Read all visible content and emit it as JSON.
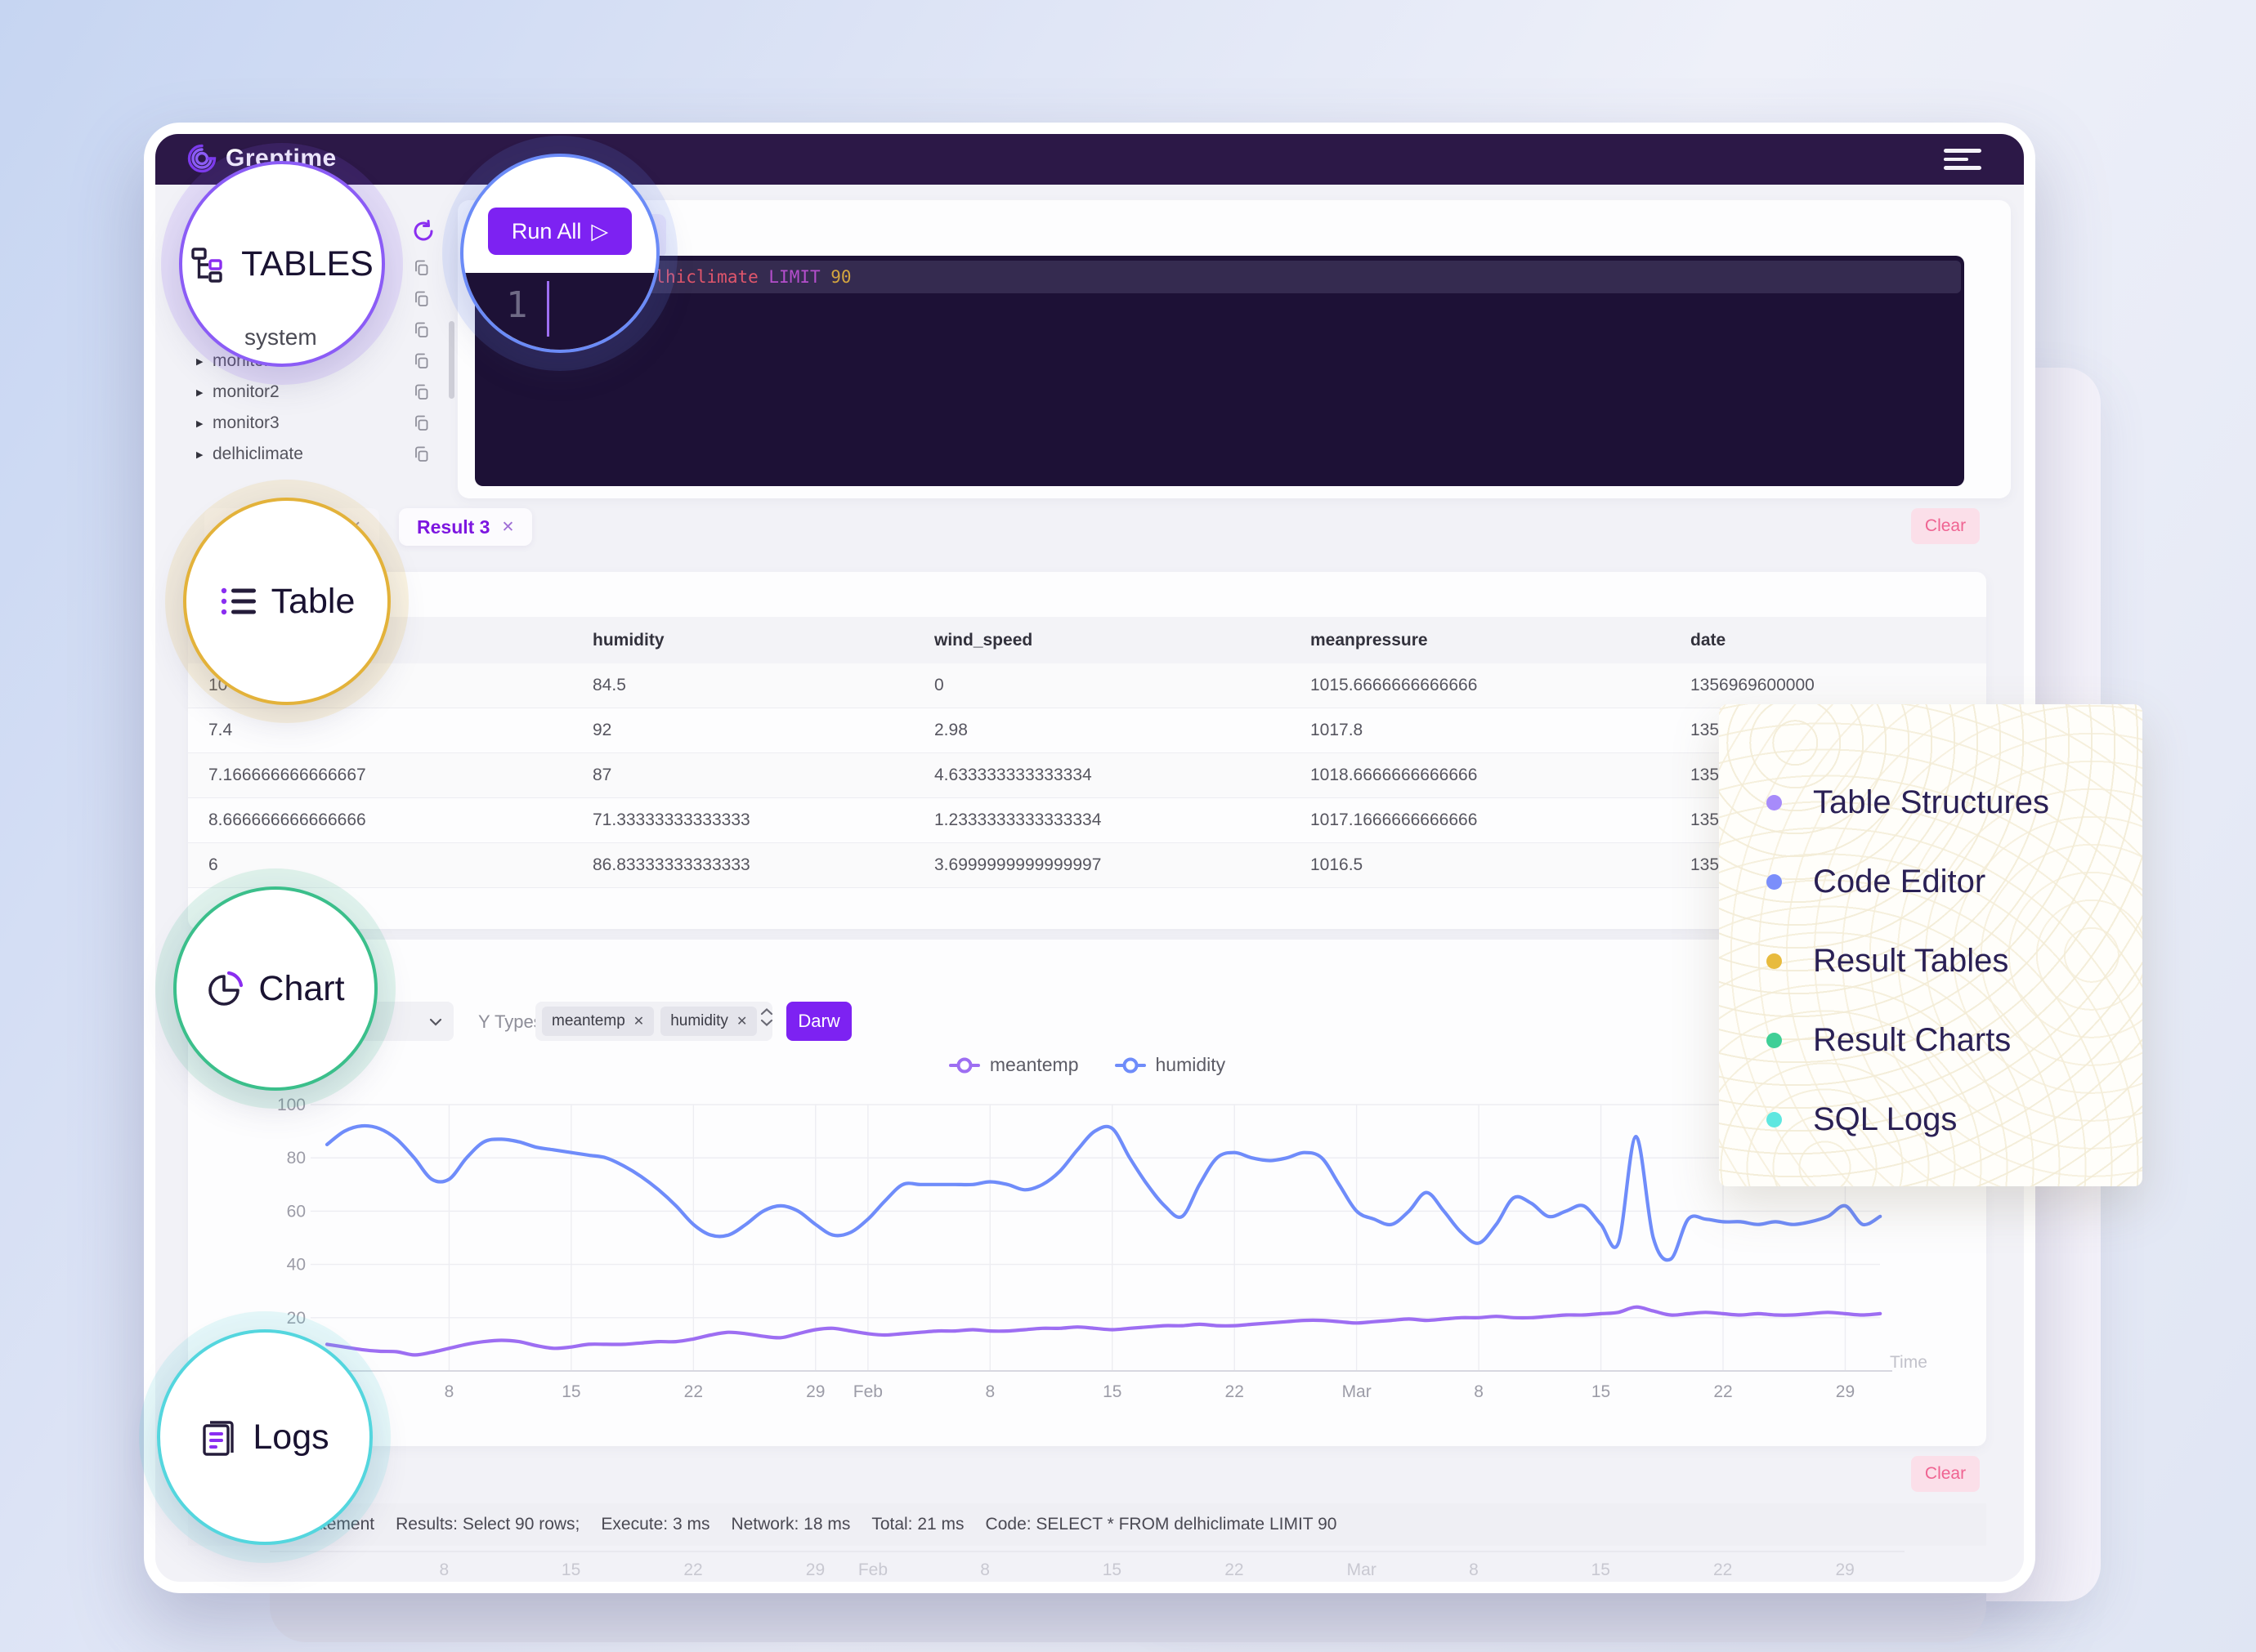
{
  "navbar": {
    "brand": "Greptime"
  },
  "callouts": {
    "tables": {
      "label": "TABLES",
      "sublabel": "system",
      "ring": "#8b5cf6"
    },
    "run_all": {
      "label": "Run All",
      "play_glyph": "▷",
      "gutter_line": "1",
      "ring": "#6b8bf7"
    },
    "table": {
      "label": "Table",
      "ring": "#e3b23a"
    },
    "chart": {
      "label": "Chart",
      "ring": "#3bbf8b"
    },
    "logs": {
      "label": "Logs",
      "ring": "#54d6de"
    }
  },
  "sidebar": {
    "rows": [
      {
        "label": "",
        "caret": false
      },
      {
        "label": "",
        "caret": false
      },
      {
        "label": "",
        "caret": false
      },
      {
        "label": "monitor1",
        "caret": true
      },
      {
        "label": "monitor2",
        "caret": true
      },
      {
        "label": "monitor3",
        "caret": true
      },
      {
        "label": "delhiclimate",
        "caret": true
      }
    ]
  },
  "editor": {
    "secondary_button_label": "F",
    "sql_tokens": [
      {
        "t": "SELECT",
        "c": "keyword"
      },
      {
        "t": " * ",
        "c": "plain"
      },
      {
        "t": "FROM",
        "c": "keyword"
      },
      {
        "t": " ",
        "c": "plain"
      },
      {
        "t": "delhiclimate",
        "c": "identifier"
      },
      {
        "t": " ",
        "c": "plain"
      },
      {
        "t": "LIMIT",
        "c": "keyword"
      },
      {
        "t": " ",
        "c": "plain"
      },
      {
        "t": "90",
        "c": "number"
      }
    ],
    "syntax_colors": {
      "keyword": "#b44ecc",
      "identifier": "#e0566b",
      "number": "#d3a53f",
      "plain": "#cfc9e0"
    }
  },
  "results": {
    "tabs": [
      {
        "label": "Result 2",
        "active": false
      },
      {
        "label": "Result 3",
        "active": true
      }
    ],
    "close_glyph": "✕",
    "clear_label": "Clear",
    "columns": [
      "",
      "humidity",
      "wind_speed",
      "meanpressure",
      "date"
    ],
    "rows": [
      [
        "10",
        "84.5",
        "0",
        "1015.6666666666666",
        "1356969600000"
      ],
      [
        "7.4",
        "92",
        "2.98",
        "1017.8",
        "1357"
      ],
      [
        "7.166666666666667",
        "87",
        "4.633333333333334",
        "1018.6666666666666",
        "1357"
      ],
      [
        "8.666666666666666",
        "71.33333333333333",
        "1.2333333333333334",
        "1017.1666666666666",
        "1357"
      ],
      [
        "6",
        "86.83333333333333",
        "3.6999999999999997",
        "1016.5",
        "1357"
      ]
    ]
  },
  "chart_controls": {
    "y_types_label": "Y Types",
    "chips": [
      "meantemp",
      "humidity"
    ],
    "close_glyph": "✕",
    "draw_label": "Darw"
  },
  "chart_data": {
    "type": "line",
    "title": "",
    "xlabel": "Time",
    "ylabel": "",
    "ylim": [
      0,
      100
    ],
    "y_ticks": [
      20,
      40,
      60,
      80,
      100
    ],
    "grid": true,
    "legend_position": "top",
    "x_ticks": [
      {
        "pos": 8,
        "label": "8"
      },
      {
        "pos": 15,
        "label": "15"
      },
      {
        "pos": 22,
        "label": "22"
      },
      {
        "pos": 29,
        "label": "29"
      },
      {
        "pos": 32,
        "label": "Feb"
      },
      {
        "pos": 39,
        "label": "8"
      },
      {
        "pos": 46,
        "label": "15"
      },
      {
        "pos": 53,
        "label": "22"
      },
      {
        "pos": 60,
        "label": "Mar"
      },
      {
        "pos": 67,
        "label": "8"
      },
      {
        "pos": 74,
        "label": "15"
      },
      {
        "pos": 81,
        "label": "22"
      },
      {
        "pos": 88,
        "label": "29"
      }
    ],
    "series": [
      {
        "name": "meantemp",
        "color": "#9d6ef2",
        "values": [
          10,
          9,
          8,
          7.4,
          7.2,
          6,
          7,
          8.5,
          10,
          11,
          11.5,
          11,
          9.5,
          8.5,
          9,
          10,
          10,
          10,
          10.5,
          11,
          11,
          12,
          13.5,
          14.5,
          14,
          13,
          12.5,
          14,
          15.5,
          16,
          15,
          14,
          13.5,
          14,
          14.5,
          15,
          15,
          15.5,
          15,
          15,
          15.5,
          16,
          16,
          16.5,
          16,
          15.5,
          16,
          16.5,
          17,
          17,
          17.5,
          17,
          17,
          17.5,
          18,
          18.5,
          19,
          19,
          18.5,
          18,
          18.5,
          19,
          19.5,
          19,
          19.5,
          20,
          20,
          20.5,
          20,
          20,
          20.5,
          21,
          21,
          21.5,
          22,
          24,
          22.5,
          21,
          21.5,
          22,
          21.5,
          21,
          21.5,
          21,
          21,
          21.5,
          22,
          21.5,
          21,
          21.5
        ]
      },
      {
        "name": "humidity",
        "color": "#6f8cfa",
        "values": [
          85,
          90,
          92,
          91,
          87,
          80,
          72,
          72,
          80,
          86,
          87,
          86,
          84,
          83,
          82,
          81,
          80,
          77,
          73,
          68,
          62,
          55,
          51,
          51,
          55,
          60,
          62,
          60,
          55,
          51,
          52,
          57,
          64,
          70,
          70,
          70,
          70,
          70,
          71,
          70,
          68,
          70,
          75,
          83,
          90,
          91,
          80,
          70,
          62,
          58,
          70,
          80,
          82,
          80,
          79,
          80,
          82,
          80,
          70,
          60,
          57,
          55,
          60,
          67,
          60,
          52,
          48,
          55,
          65,
          63,
          58,
          60,
          62,
          55,
          48,
          88,
          50,
          42,
          57,
          57,
          56,
          56,
          55,
          56,
          55,
          56,
          58,
          62,
          55,
          58
        ]
      }
    ]
  },
  "logs_bar": {
    "clear_label": "Clear",
    "segments": [
      "Executed 1 statement",
      "Results: Select 90 rows;",
      "Execute: 3 ms",
      "Network: 18 ms",
      "Total: 21 ms",
      "Code: SELECT * FROM delhiclimate LIMIT 90"
    ]
  },
  "overlay_card": {
    "items": [
      {
        "label": "Table Structures",
        "color": "#a78bfa"
      },
      {
        "label": "Code Editor",
        "color": "#7b8efb"
      },
      {
        "label": "Result Tables",
        "color": "#e8bb3e"
      },
      {
        "label": "Result Charts",
        "color": "#3fcf96"
      },
      {
        "label": "SQL Logs",
        "color": "#5fe7e0"
      }
    ]
  }
}
